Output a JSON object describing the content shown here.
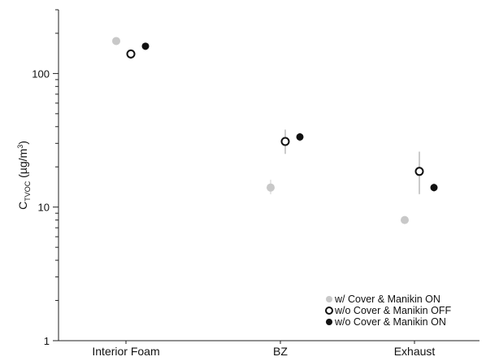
{
  "chart_data": {
    "type": "scatter",
    "title": "",
    "xlabel": "",
    "ylabel": {
      "base": "C",
      "subscript": "TVOC",
      "unit_prefix": " (µg/m",
      "unit_sup": "3",
      "unit_suffix": ")"
    },
    "y_scale": "log",
    "ylim": [
      1,
      300
    ],
    "yticks": [
      {
        "value": 1,
        "label": "1"
      },
      {
        "value": 10,
        "label": "10"
      },
      {
        "value": 100,
        "label": "100"
      }
    ],
    "categories": [
      "Interior Foam",
      "BZ",
      "Exhaust"
    ],
    "legend_position": "bottom-right",
    "grid": false,
    "series": [
      {
        "name": "w/ Cover & Manikin ON",
        "marker": "filled-light",
        "color": "#c8c8c8",
        "values": [
          175,
          14,
          8
        ],
        "err_low": [
          null,
          12.5,
          7.5
        ],
        "err_high": [
          null,
          16,
          8.5
        ]
      },
      {
        "name": "w/o Cover & Manikin OFF",
        "marker": "open",
        "color": "#111111",
        "values": [
          140,
          31,
          18.5
        ],
        "err_low": [
          128,
          25,
          12.5
        ],
        "err_high": [
          152,
          38,
          26
        ]
      },
      {
        "name": "w/o Cover & Manikin ON",
        "marker": "filled",
        "color": "#111111",
        "values": [
          160,
          33.5,
          14
        ],
        "err_low": [
          150,
          31,
          13
        ],
        "err_high": [
          170,
          36,
          15
        ]
      }
    ]
  }
}
